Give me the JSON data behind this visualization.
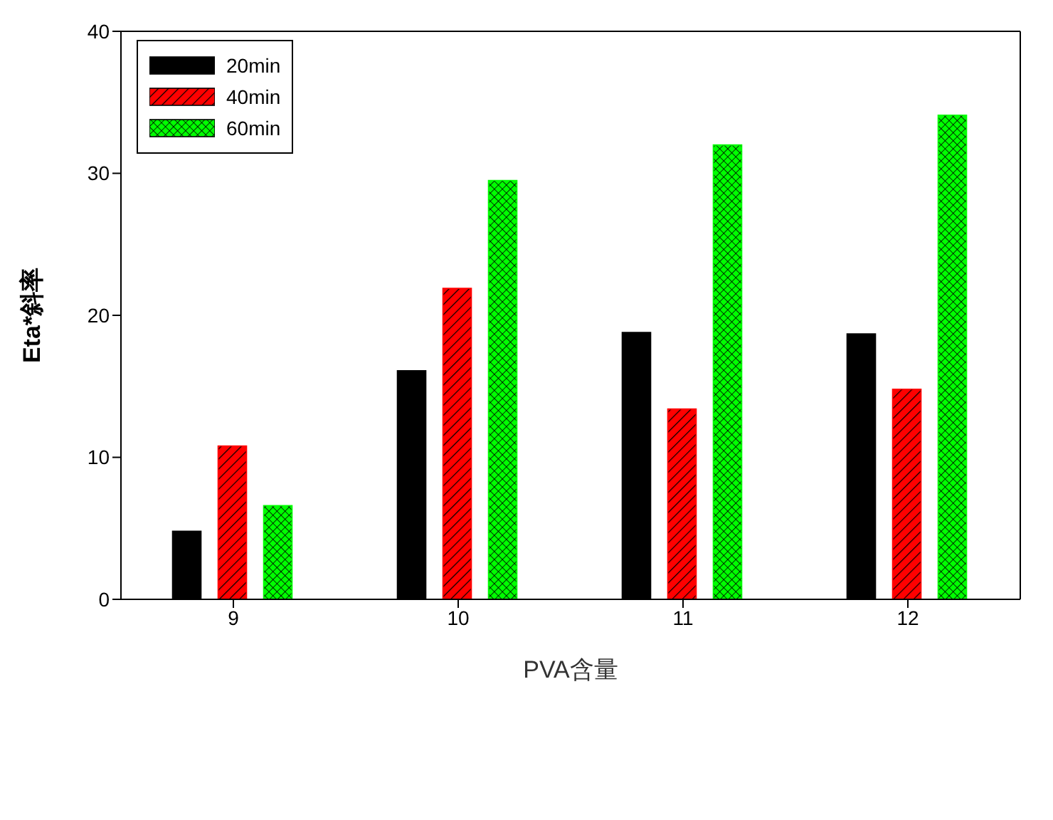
{
  "chart_data": {
    "type": "bar",
    "xlabel": "PVA含量",
    "ylabel": "Eta*斜率",
    "categories": [
      "9",
      "10",
      "11",
      "12"
    ],
    "series": [
      {
        "name": "20min",
        "color": "#000000",
        "values": [
          4.8,
          16.1,
          18.8,
          18.7
        ]
      },
      {
        "name": "40min",
        "color": "#ff0000",
        "values": [
          10.8,
          21.9,
          13.4,
          14.8
        ]
      },
      {
        "name": "60min",
        "color": "#00ff00",
        "values": [
          6.6,
          29.5,
          32.0,
          34.1
        ]
      }
    ],
    "ylim": [
      0,
      40
    ],
    "yticks": [
      0,
      10,
      20,
      30,
      40
    ],
    "grid": false,
    "legend": "top left"
  }
}
